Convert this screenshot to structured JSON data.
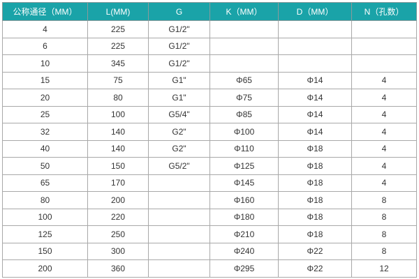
{
  "table": {
    "headers": [
      "公称通径（MM）",
      "L(MM)",
      "G",
      "K（MM）",
      "D（MM）",
      "N（孔数）"
    ],
    "rows": [
      [
        "4",
        "225",
        "G1/2\"",
        "",
        "",
        ""
      ],
      [
        "6",
        "225",
        "G1/2\"",
        "",
        "",
        ""
      ],
      [
        "10",
        "345",
        "G1/2\"",
        "",
        "",
        ""
      ],
      [
        "15",
        "75",
        "G1\"",
        "Φ65",
        "Φ14",
        "4"
      ],
      [
        "20",
        "80",
        "G1\"",
        "Φ75",
        "Φ14",
        "4"
      ],
      [
        "25",
        "100",
        "G5/4\"",
        "Φ85",
        "Φ14",
        "4"
      ],
      [
        "32",
        "140",
        "G2\"",
        "Φ100",
        "Φ14",
        "4"
      ],
      [
        "40",
        "140",
        "G2\"",
        "Φ110",
        "Φ18",
        "4"
      ],
      [
        "50",
        "150",
        "G5/2\"",
        "Φ125",
        "Φ18",
        "4"
      ],
      [
        "65",
        "170",
        "",
        "Φ145",
        "Φ18",
        "4"
      ],
      [
        "80",
        "200",
        "",
        "Φ160",
        "Φ18",
        "8"
      ],
      [
        "100",
        "220",
        "",
        "Φ180",
        "Φ18",
        "8"
      ],
      [
        "125",
        "250",
        "",
        "Φ210",
        "Φ18",
        "8"
      ],
      [
        "150",
        "300",
        "",
        "Φ240",
        "Φ22",
        "8"
      ],
      [
        "200",
        "360",
        "",
        "Φ295",
        "Φ22",
        "12"
      ]
    ]
  },
  "colors": {
    "header_bg": "#1aa3a8",
    "header_text": "#ffffff"
  }
}
